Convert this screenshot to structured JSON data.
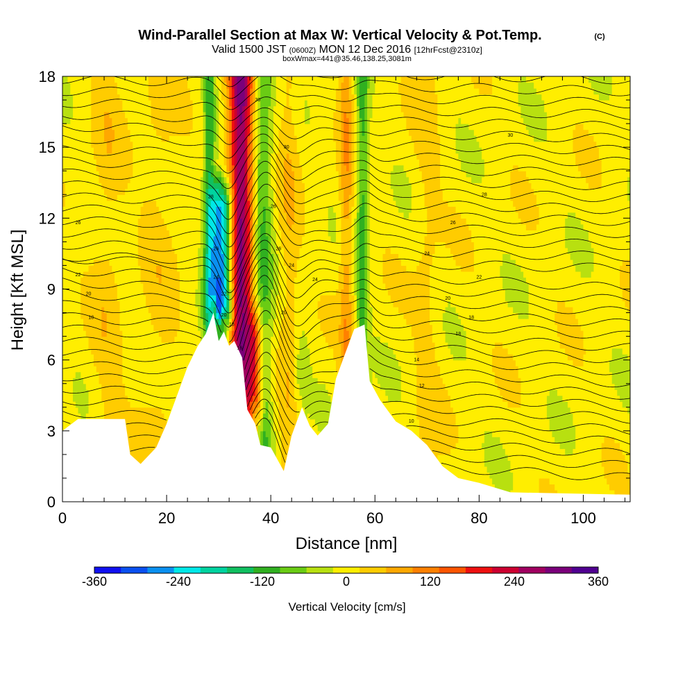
{
  "chart_data": {
    "type": "heatmap",
    "title": "Wind-Parallel Section at Max W: Vertical Velocity & Pot.Temp.",
    "title_mark": "(C)",
    "subtitle": {
      "valid": "Valid 1500 JST",
      "utc": "(0600Z)",
      "date": "MON 12 Dec 2016",
      "forecast": "[12hrFcst@2310z]"
    },
    "box_label": "boxWmax=441@35.46,138.25,3081m",
    "xlabel": "Distance [nm]",
    "ylabel": "Height [Kft MSL]",
    "xlim": [
      0,
      109
    ],
    "ylim": [
      0,
      18
    ],
    "x_ticks": [
      0,
      20,
      40,
      60,
      80,
      100
    ],
    "y_ticks": [
      0,
      3,
      6,
      9,
      12,
      15,
      18
    ],
    "colorbar": {
      "label": "Vertical Velocity [cm/s]",
      "tick_labels": [
        "-360",
        "-240",
        "-120",
        "0",
        "120",
        "240",
        "360"
      ],
      "tick_values": [
        -360,
        -240,
        -120,
        0,
        120,
        240,
        360
      ],
      "range": [
        -360,
        360
      ],
      "colors": [
        "#1010f0",
        "#0a50f0",
        "#0a90f0",
        "#00e8e8",
        "#00d3a0",
        "#10c060",
        "#30b020",
        "#6acc14",
        "#b8e010",
        "#ffee00",
        "#ffcc00",
        "#ffa800",
        "#ff8000",
        "#ff5500",
        "#ee1010",
        "#cc0030",
        "#a00060",
        "#7a007a",
        "#500090"
      ]
    },
    "terrain_height_kft": [
      [
        0,
        3.0
      ],
      [
        3,
        3.5
      ],
      [
        12,
        3.5
      ],
      [
        13,
        2.0
      ],
      [
        15,
        1.6
      ],
      [
        18,
        2.3
      ],
      [
        20,
        3.3
      ],
      [
        22,
        4.5
      ],
      [
        24,
        5.7
      ],
      [
        26,
        6.6
      ],
      [
        27.5,
        7.1
      ],
      [
        29,
        8.0
      ],
      [
        30,
        6.8
      ],
      [
        31,
        7.2
      ],
      [
        32,
        6.6
      ],
      [
        33,
        6.8
      ],
      [
        34.5,
        6.1
      ],
      [
        35.5,
        3.9
      ],
      [
        37,
        3.3
      ],
      [
        38,
        2.4
      ],
      [
        40,
        2.3
      ],
      [
        41.5,
        1.7
      ],
      [
        42.5,
        1.3
      ],
      [
        44,
        2.8
      ],
      [
        46,
        4.0
      ],
      [
        47.5,
        3.2
      ],
      [
        49,
        2.8
      ],
      [
        51,
        3.3
      ],
      [
        52.5,
        5.2
      ],
      [
        54,
        6.1
      ],
      [
        56,
        7.3
      ],
      [
        58,
        7.5
      ],
      [
        59,
        5.1
      ],
      [
        61,
        4.3
      ],
      [
        64,
        3.4
      ],
      [
        67,
        3.0
      ],
      [
        70,
        2.4
      ],
      [
        73,
        1.5
      ],
      [
        76,
        1.0
      ],
      [
        80,
        0.8
      ],
      [
        86,
        0.4
      ],
      [
        109,
        0.3
      ]
    ],
    "vertical_velocity_cm_s": [
      {
        "x": 30.5,
        "halfwidth": 2.3,
        "peak": -300,
        "top": 12.5
      },
      {
        "x": 34.2,
        "halfwidth": 2.3,
        "peak": 300,
        "top": 18
      },
      {
        "x": 37,
        "halfwidth": 1.5,
        "peak": 150,
        "top": 7
      },
      {
        "x": 28.2,
        "halfwidth": 1.1,
        "peak": -120,
        "top": 18
      },
      {
        "x": 38.5,
        "halfwidth": 1.8,
        "peak": -100,
        "top": 18
      },
      {
        "x": 57.6,
        "halfwidth": 1.1,
        "peak": -110,
        "top": 18
      },
      {
        "x": 54.5,
        "halfwidth": 1.3,
        "peak": 80,
        "top": 18
      },
      {
        "x": 43.5,
        "halfwidth": 2.0,
        "peak": 45,
        "top": 18
      },
      {
        "x": 46,
        "halfwidth": 1.2,
        "peak": -55,
        "top": 6
      },
      {
        "x": 8.5,
        "halfwidth": 3.0,
        "peak": 35,
        "top": 18
      },
      {
        "x": 18.5,
        "halfwidth": 3.5,
        "peak": 30,
        "top": 18
      },
      {
        "x": 70,
        "halfwidth": 2.5,
        "peak": 30,
        "top": 18
      }
    ],
    "contour_labels": [
      {
        "text": "30",
        "x": 37.5,
        "y": 17.0
      },
      {
        "text": "30",
        "x": 86,
        "y": 15.5
      },
      {
        "text": "30",
        "x": 43,
        "y": 15.0
      },
      {
        "text": "28",
        "x": 28.5,
        "y": 12.9
      },
      {
        "text": "28",
        "x": 81,
        "y": 13.0
      },
      {
        "text": "26",
        "x": 40.5,
        "y": 12.5
      },
      {
        "text": "26",
        "x": 3,
        "y": 11.8
      },
      {
        "text": "26",
        "x": 75,
        "y": 11.8
      },
      {
        "text": "26",
        "x": 29.5,
        "y": 10.7
      },
      {
        "text": "26",
        "x": 41.5,
        "y": 10.7
      },
      {
        "text": "24",
        "x": 70,
        "y": 10.5
      },
      {
        "text": "24",
        "x": 44,
        "y": 10.0
      },
      {
        "text": "24",
        "x": 29.5,
        "y": 9.5
      },
      {
        "text": "24",
        "x": 48.5,
        "y": 9.4
      },
      {
        "text": "22",
        "x": 3,
        "y": 9.6
      },
      {
        "text": "22",
        "x": 80,
        "y": 9.5
      },
      {
        "text": "22",
        "x": 31,
        "y": 8.8
      },
      {
        "text": "20",
        "x": 5,
        "y": 8.8
      },
      {
        "text": "20",
        "x": 74,
        "y": 8.6
      },
      {
        "text": "20",
        "x": 42.5,
        "y": 8.0
      },
      {
        "text": "20",
        "x": 31,
        "y": 7.9
      },
      {
        "text": "18",
        "x": 5.5,
        "y": 7.8
      },
      {
        "text": "18",
        "x": 78.5,
        "y": 7.8
      },
      {
        "text": "18",
        "x": 32.5,
        "y": 7.5
      },
      {
        "text": "18",
        "x": 76,
        "y": 7.1
      },
      {
        "text": "16",
        "x": 34,
        "y": 6.5
      },
      {
        "text": "14",
        "x": 68,
        "y": 6.0
      },
      {
        "text": "12",
        "x": 69,
        "y": 4.9
      },
      {
        "text": "10",
        "x": 67,
        "y": 3.4
      }
    ]
  }
}
